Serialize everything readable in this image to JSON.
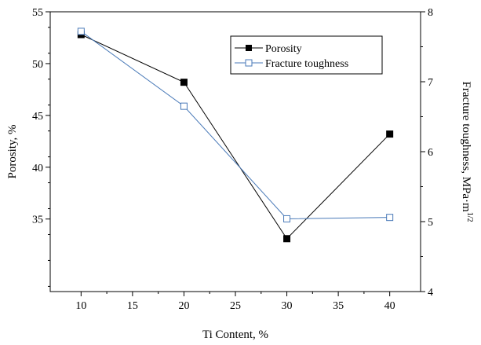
{
  "chart_data": {
    "type": "line",
    "title": "",
    "xlabel": "Ti Content, %",
    "ylabel_left": "Porosity, %",
    "ylabel_right": "Fracture toughness, MPa·m",
    "ylabel_right_superscript": "1/2",
    "xlim": [
      7,
      43
    ],
    "ylim_left": [
      28,
      55
    ],
    "ylim_right": [
      4,
      8
    ],
    "x_ticks": [
      10,
      15,
      20,
      25,
      30,
      35,
      40
    ],
    "y_left_ticks": [
      35,
      40,
      45,
      50,
      55
    ],
    "y_right_ticks": [
      4,
      5,
      6,
      7,
      8
    ],
    "grid": false,
    "legend_position": "top-right",
    "series": [
      {
        "name": "Porosity",
        "axis": "left",
        "marker": "filled-square",
        "color": "#000000",
        "x": [
          10,
          20,
          30,
          40
        ],
        "values": [
          52.8,
          48.2,
          33.1,
          43.2
        ]
      },
      {
        "name": "Fracture toughness",
        "axis": "right",
        "marker": "open-square",
        "color": "#4a7ab8",
        "x": [
          10,
          20,
          30,
          40
        ],
        "values": [
          7.72,
          6.65,
          5.04,
          5.06
        ]
      }
    ]
  }
}
